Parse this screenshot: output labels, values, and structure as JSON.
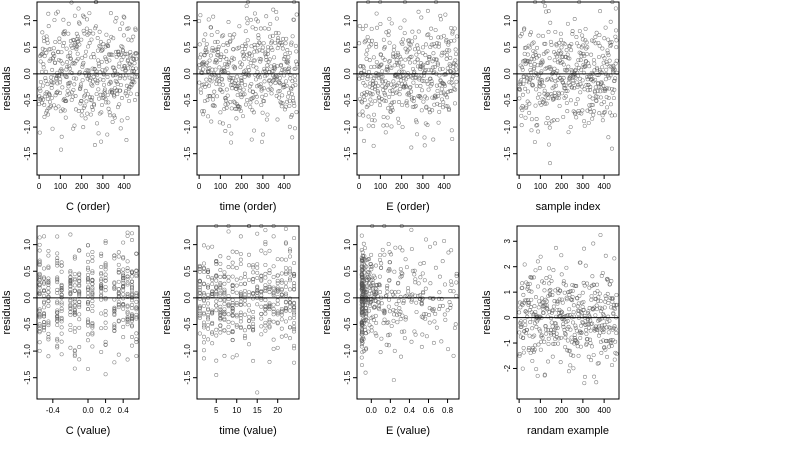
{
  "chart_data": [
    {
      "type": "scatter",
      "xlabel": "C (order)",
      "ylabel": "residuals",
      "xlim": [
        -10,
        470
      ],
      "ylim": [
        -1.9,
        1.35
      ],
      "xticks": [
        0,
        100,
        200,
        300,
        400
      ],
      "xtick_labels": [
        "0",
        "100",
        "200",
        "300",
        "400"
      ],
      "yticks": [
        1.0,
        0.5,
        0.0,
        -0.5,
        -1.0,
        -1.5
      ],
      "ytick_labels": [
        "1.0",
        "0.5",
        "0.0",
        "-0.5",
        "-1.0",
        "-1.5"
      ],
      "hline_y": 0,
      "gen": {
        "kind": "index",
        "seed": 11,
        "n": 460,
        "xmax": 460,
        "sd": 0.5
      }
    },
    {
      "type": "scatter",
      "xlabel": "time (order)",
      "ylabel": "residuals",
      "xlim": [
        -10,
        470
      ],
      "ylim": [
        -1.9,
        1.35
      ],
      "xticks": [
        0,
        100,
        200,
        300,
        400
      ],
      "xtick_labels": [
        "0",
        "100",
        "200",
        "300",
        "400"
      ],
      "yticks": [
        1.0,
        0.5,
        0.0,
        -0.5,
        -1.0,
        -1.5
      ],
      "ytick_labels": [
        "1.0",
        "0.5",
        "0.0",
        "-0.5",
        "-1.0",
        "-1.5"
      ],
      "hline_y": 0,
      "gen": {
        "kind": "index",
        "seed": 23,
        "n": 460,
        "xmax": 460,
        "sd": 0.5
      }
    },
    {
      "type": "scatter",
      "xlabel": "E (order)",
      "ylabel": "residuals",
      "xlim": [
        -10,
        470
      ],
      "ylim": [
        -1.9,
        1.35
      ],
      "xticks": [
        0,
        100,
        200,
        300,
        400
      ],
      "xtick_labels": [
        "0",
        "100",
        "200",
        "300",
        "400"
      ],
      "yticks": [
        1.0,
        0.5,
        0.0,
        -0.5,
        -1.0,
        -1.5
      ],
      "ytick_labels": [
        "1.0",
        "0.5",
        "0.0",
        "-0.5",
        "-1.0",
        "-1.5"
      ],
      "hline_y": 0,
      "gen": {
        "kind": "index",
        "seed": 37,
        "n": 460,
        "xmax": 460,
        "sd": 0.5
      }
    },
    {
      "type": "scatter",
      "xlabel": "sample index",
      "ylabel": "residuals",
      "xlim": [
        -10,
        470
      ],
      "ylim": [
        -1.9,
        1.35
      ],
      "xticks": [
        0,
        100,
        200,
        300,
        400
      ],
      "xtick_labels": [
        "0",
        "100",
        "200",
        "300",
        "400"
      ],
      "yticks": [
        1.0,
        0.5,
        0.0,
        -0.5,
        -1.0,
        -1.5
      ],
      "ytick_labels": [
        "1.0",
        "0.5",
        "0.0",
        "-0.5",
        "-1.0",
        "-1.5"
      ],
      "hline_y": 0,
      "gen": {
        "kind": "index",
        "seed": 41,
        "n": 460,
        "xmax": 460,
        "sd": 0.5
      }
    },
    {
      "type": "scatter",
      "xlabel": "C (value)",
      "ylabel": "residuals",
      "xlim": [
        -0.58,
        0.58
      ],
      "ylim": [
        -1.9,
        1.35
      ],
      "xticks": [
        -0.4,
        0.0,
        0.2,
        0.4
      ],
      "xtick_labels": [
        "-0.4",
        "0.0",
        "0.2",
        "0.4"
      ],
      "yticks": [
        1.0,
        0.5,
        0.0,
        -0.5,
        -1.0,
        -1.5
      ],
      "ytick_labels": [
        "1.0",
        "0.5",
        "0.0",
        "-0.5",
        "-1.0",
        "-1.5"
      ],
      "hline_y": 0,
      "gen": {
        "kind": "discrete",
        "seed": 53,
        "n": 460,
        "sd": 0.5,
        "levels": [
          -0.55,
          -0.5,
          -0.45,
          -0.35,
          -0.3,
          -0.2,
          -0.15,
          -0.1,
          0.0,
          0.05,
          0.15,
          0.2,
          0.3,
          0.35,
          0.4,
          0.45,
          0.5,
          0.55
        ]
      }
    },
    {
      "type": "scatter",
      "xlabel": "time (value)",
      "ylabel": "residuals",
      "xlim": [
        0.3,
        25.2
      ],
      "ylim": [
        -1.9,
        1.35
      ],
      "xticks": [
        5,
        10,
        15,
        20
      ],
      "xtick_labels": [
        "5",
        "10",
        "15",
        "20"
      ],
      "yticks": [
        1.0,
        0.5,
        0.0,
        -0.5,
        -1.0,
        -1.5
      ],
      "ytick_labels": [
        "1.0",
        "0.5",
        "0.0",
        "-0.5",
        "-1.0",
        "-1.5"
      ],
      "hline_y": 0,
      "gen": {
        "kind": "discrete",
        "seed": 67,
        "n": 460,
        "sd": 0.5,
        "levels": [
          1,
          2,
          3,
          4,
          5,
          6,
          7,
          8,
          9,
          10,
          11,
          12,
          13,
          14,
          15,
          16,
          17,
          18,
          19,
          20,
          21,
          22,
          23,
          24
        ]
      }
    },
    {
      "type": "scatter",
      "xlabel": "E (value)",
      "ylabel": "residuals",
      "xlim": [
        -0.15,
        0.92
      ],
      "ylim": [
        -1.9,
        1.35
      ],
      "xticks": [
        0.0,
        0.2,
        0.4,
        0.6,
        0.8
      ],
      "xtick_labels": [
        "0.0",
        "0.2",
        "0.4",
        "0.6",
        "0.8"
      ],
      "yticks": [
        1.0,
        0.5,
        0.0,
        -0.5,
        -1.0,
        -1.5
      ],
      "ytick_labels": [
        "1.0",
        "0.5",
        "0.0",
        "-0.5",
        "-1.0",
        "-1.5"
      ],
      "hline_y": 0,
      "gen": {
        "kind": "skewed",
        "seed": 79,
        "n": 460,
        "sd": 0.5,
        "xmin": -0.1,
        "xmax": 0.9
      }
    },
    {
      "type": "scatter",
      "xlabel": "randam example",
      "ylabel": "residuals",
      "xlim": [
        -10,
        470
      ],
      "ylim": [
        -3.2,
        3.6
      ],
      "xticks": [
        0,
        100,
        200,
        300,
        400
      ],
      "xtick_labels": [
        "0",
        "100",
        "200",
        "300",
        "400"
      ],
      "yticks": [
        3,
        2,
        1,
        0,
        -1,
        -2
      ],
      "ytick_labels": [
        "3",
        "2",
        "1",
        "0",
        "-1",
        "-2"
      ],
      "hline_y": 0,
      "gen": {
        "kind": "index",
        "seed": 97,
        "n": 460,
        "xmax": 460,
        "sd": 1.0
      }
    }
  ]
}
